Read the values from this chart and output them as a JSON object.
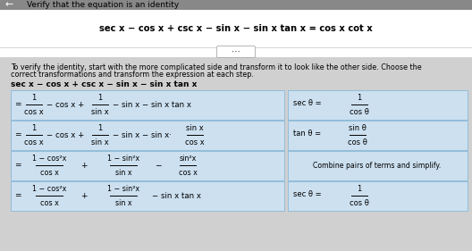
{
  "page_bg": "#ffffff",
  "gray_bar_color": "#9e9e9e",
  "main_eq_area_bg": "#ffffff",
  "lower_bg": "#d8d8d8",
  "accent_color": "#cce0f0",
  "accent_border": "#8ab8d8",
  "hint_bg": "#cce0f0",
  "hint_border": "#8ab8d8",
  "title": "Verify that the equation is an identity",
  "main_eq": "sec x − cos x + csc x − sin x − sin x tan x = cos x cot x",
  "intro_line1": "To verify the identity, start with the more complicated side and transform it to look like the other side. Choose the",
  "intro_line2": "correct transformations and transform the expression at each step.",
  "expr_header": "sec x − cos x + csc x − sin x − sin x tan x"
}
